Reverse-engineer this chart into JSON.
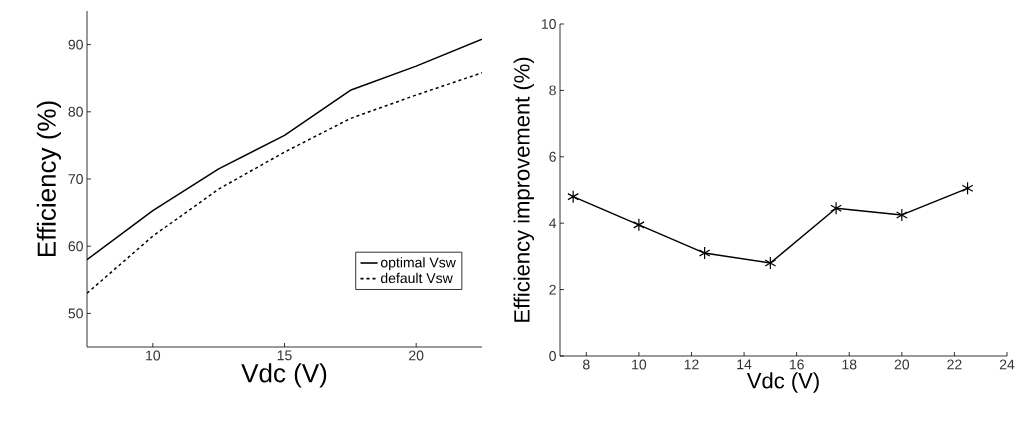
{
  "chart_data": [
    {
      "type": "line",
      "xlabel": "Vdc (V)",
      "ylabel": "Efficiency (%)",
      "x": [
        7.5,
        10,
        12.5,
        15,
        17.5,
        20,
        22.5
      ],
      "series": [
        {
          "name": "optimal Vsw",
          "color": "#000000",
          "line_style": "solid",
          "values": [
            58,
            65.3,
            71.5,
            76.5,
            83.2,
            86.8,
            90.8
          ]
        },
        {
          "name": "default Vsw",
          "color": "#000000",
          "line_style": "dashed",
          "values": [
            53,
            61.5,
            68.5,
            74,
            79,
            82.5,
            85.8
          ]
        }
      ],
      "xlim": [
        7.5,
        22.5
      ],
      "ylim": [
        45,
        95
      ],
      "xticks": [
        10,
        15,
        20
      ],
      "yticks": [
        50,
        60,
        70,
        80,
        90
      ],
      "legend": "bottom right"
    },
    {
      "type": "line",
      "xlabel": "Vdc (V)",
      "ylabel": "Efficiency improvement (%)",
      "x": [
        7.5,
        10,
        12.5,
        15,
        17.5,
        20,
        22.5
      ],
      "series": [
        {
          "color": "#000000",
          "values": [
            4.8,
            3.95,
            3.1,
            2.8,
            4.45,
            4.25,
            5.05
          ]
        }
      ],
      "marker": "cross",
      "xlim": [
        7,
        24
      ],
      "ylim": [
        0,
        10
      ],
      "xticks": [
        8,
        10,
        12,
        14,
        16,
        18,
        20,
        22,
        24
      ],
      "yticks": [
        0,
        2,
        4,
        6,
        8,
        10
      ]
    }
  ]
}
